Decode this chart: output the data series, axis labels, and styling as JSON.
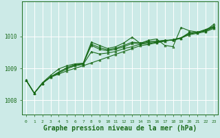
{
  "background_color": "#cceae7",
  "grid_color": "#aadddd",
  "line_color": "#1a6b1a",
  "marker_color": "#1a6b1a",
  "xlabel": "Graphe pression niveau de la mer (hPa)",
  "xlabel_fontsize": 7,
  "ylabel_ticks": [
    1008,
    1009,
    1010
  ],
  "xlim": [
    -0.5,
    23.5
  ],
  "ylim": [
    1007.55,
    1011.1
  ],
  "xticks": [
    0,
    1,
    2,
    3,
    4,
    5,
    6,
    7,
    8,
    9,
    10,
    11,
    12,
    13,
    14,
    15,
    16,
    17,
    18,
    19,
    20,
    21,
    22,
    23
  ],
  "series": [
    [
      1008.63,
      1008.22,
      1008.53,
      1008.72,
      1008.82,
      1008.92,
      1009.0,
      1009.08,
      1009.17,
      1009.26,
      1009.35,
      1009.44,
      1009.53,
      1009.62,
      1009.71,
      1009.75,
      1009.8,
      1009.85,
      1009.9,
      1009.95,
      1010.05,
      1010.1,
      1010.15,
      1010.25
    ],
    [
      1008.63,
      1008.22,
      1008.53,
      1008.73,
      1008.85,
      1008.98,
      1009.08,
      1009.12,
      1009.52,
      1009.45,
      1009.48,
      1009.53,
      1009.62,
      1009.68,
      1009.76,
      1009.78,
      1009.82,
      1009.86,
      1009.9,
      1009.96,
      1010.08,
      1010.12,
      1010.18,
      1010.28
    ],
    [
      1008.63,
      1008.22,
      1008.53,
      1008.73,
      1008.88,
      1009.02,
      1009.1,
      1009.14,
      1009.72,
      1009.6,
      1009.55,
      1009.6,
      1009.68,
      1009.78,
      1009.78,
      1009.82,
      1009.83,
      1009.88,
      1009.88,
      1009.94,
      1010.1,
      1010.13,
      1010.2,
      1010.3
    ],
    [
      1008.63,
      1008.22,
      1008.53,
      1008.73,
      1008.88,
      1009.02,
      1009.12,
      1009.15,
      1009.76,
      1009.65,
      1009.58,
      1009.63,
      1009.72,
      1009.82,
      1009.8,
      1009.84,
      1009.85,
      1009.88,
      1009.88,
      1009.96,
      1010.12,
      1010.13,
      1010.22,
      1010.32
    ],
    [
      1008.63,
      1008.22,
      1008.55,
      1008.78,
      1008.98,
      1009.08,
      1009.14,
      1009.16,
      1009.82,
      1009.72,
      1009.62,
      1009.68,
      1009.8,
      1009.98,
      1009.78,
      1009.88,
      1009.92,
      1009.72,
      1009.68,
      1010.28,
      1010.18,
      1010.14,
      1010.18,
      1010.38
    ]
  ]
}
